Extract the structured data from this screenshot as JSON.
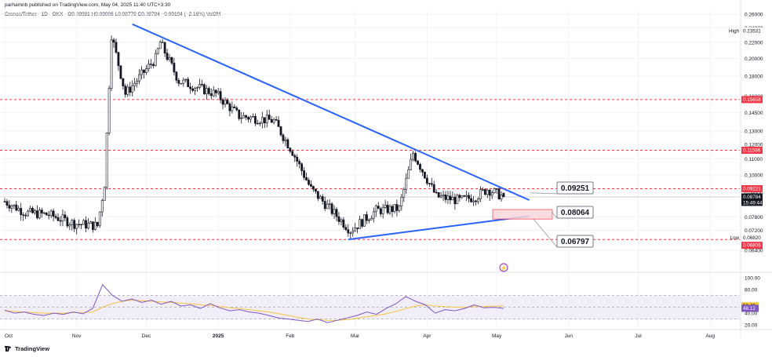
{
  "header": {
    "publisher": "parhamnb published on TradingView.com, May 04, 2025 11:40 UTC+3:30",
    "symbol": "Cronos/Tether · 1D · OKX",
    "ohlc": "O0.08981  H0.09006  L0.08778  C0.08784  −0.00194 (−2.16%)  Vol2M"
  },
  "footer": {
    "brand": "TradingView"
  },
  "colors": {
    "up": "#131722",
    "down": "#131722",
    "trendline": "#2962ff",
    "level_line": "#f23645",
    "rsi_line": "#7e57c2",
    "rsi_ma": "#f5c342",
    "rsi_band": "#ede7f6",
    "last_price": "#131722",
    "low_marker": "#f23645"
  },
  "chart_data": [
    {
      "type": "candlestick",
      "x_axis": {
        "labels": [
          "Oct",
          "Nov",
          "Dec",
          "2025",
          "Feb",
          "Mar",
          "Apr",
          "May",
          "Jun",
          "Jul",
          "Aug"
        ]
      },
      "y_axis": {
        "ticks": [
          "0.26000",
          "0.24000",
          "0.22000",
          "0.20000",
          "0.18000",
          "0.16000",
          "0.14500",
          "0.13000",
          "0.12000",
          "0.11000",
          "0.10000",
          "0.09000",
          "0.07800",
          "0.07200",
          "0.06400"
        ],
        "ylim": [
          0.058,
          0.265
        ],
        "scale": "log"
      },
      "ohlc_last": {
        "open": 0.08981,
        "high": 0.09006,
        "low": 0.08778,
        "close": 0.08784,
        "change": -0.00194,
        "change_pct": -2.16
      },
      "price_labels": [
        {
          "text": "High",
          "value": "0.23531"
        },
        {
          "text": "",
          "value": "0.15658"
        },
        {
          "text": "",
          "value": "0.11586"
        },
        {
          "text": "",
          "value": "0.09221"
        },
        {
          "text": "",
          "value": "0.08784",
          "countdown": "15:49:44"
        },
        {
          "text": "Low",
          "value": "0.06820"
        },
        {
          "text": "",
          "value": "0.06806"
        }
      ],
      "horizontal_levels": [
        0.15658,
        0.11586,
        0.09221,
        0.0682
      ],
      "annotations": [
        "0.09251",
        "0.08064",
        "0.06797"
      ],
      "trendlines": [
        {
          "name": "descending resistance",
          "from": [
            "Nov 25",
            0.245
          ],
          "to": [
            "May 15",
            0.0862
          ]
        },
        {
          "name": "ascending support",
          "from": [
            "Feb 26",
            0.0682
          ],
          "to": [
            "May 15",
            0.0784
          ]
        }
      ],
      "candles_approx": [
        {
          "date": "Oct 1",
          "close": 0.0855
        },
        {
          "date": "Oct 10",
          "close": 0.08
        },
        {
          "date": "Oct 20",
          "close": 0.079
        },
        {
          "date": "Oct 31",
          "close": 0.075
        },
        {
          "date": "Nov 10",
          "close": 0.074
        },
        {
          "date": "Nov 13",
          "close": 0.095
        },
        {
          "date": "Nov 16",
          "close": 0.23
        },
        {
          "date": "Nov 22",
          "close": 0.162
        },
        {
          "date": "Dec 5",
          "close": 0.2
        },
        {
          "date": "Dec 7",
          "close": 0.22
        },
        {
          "date": "Dec 15",
          "close": 0.175
        },
        {
          "date": "Dec 31",
          "close": 0.162
        },
        {
          "date": "Jan 10",
          "close": 0.142
        },
        {
          "date": "Jan 25",
          "close": 0.138
        },
        {
          "date": "Feb 2",
          "close": 0.115
        },
        {
          "date": "Feb 10",
          "close": 0.092
        },
        {
          "date": "Feb 27",
          "close": 0.072
        },
        {
          "date": "Mar 10",
          "close": 0.081
        },
        {
          "date": "Mar 20",
          "close": 0.082
        },
        {
          "date": "Mar 26",
          "close": 0.114
        },
        {
          "date": "Apr 5",
          "close": 0.088
        },
        {
          "date": "Apr 15",
          "close": 0.086
        },
        {
          "date": "Apr 22",
          "close": 0.088
        },
        {
          "date": "Apr 27",
          "close": 0.092
        },
        {
          "date": "May 4",
          "close": 0.08784
        }
      ]
    },
    {
      "type": "line",
      "name": "RSI",
      "y_axis": {
        "ticks": [
          "100.00",
          "80.00",
          "40.00",
          "20.00"
        ],
        "ylim": [
          15,
          105
        ]
      },
      "bands": [
        70,
        50,
        30
      ],
      "current": {
        "rsi": "48.12",
        "ma": "52.48"
      },
      "series": [
        {
          "name": "",
          "values": [
            45,
            40,
            42,
            38,
            36,
            40,
            38,
            42,
            39,
            48,
            88,
            70,
            60,
            64,
            58,
            62,
            55,
            60,
            52,
            54,
            48,
            56,
            49,
            44,
            46,
            42,
            40,
            36,
            32,
            30,
            28,
            26,
            30,
            24,
            28,
            32,
            36,
            42,
            38,
            48,
            56,
            68,
            60,
            54,
            40,
            46,
            44,
            48,
            54,
            49,
            50,
            48
          ]
        },
        {
          "name": "",
          "values": [
            44,
            43,
            42,
            41,
            40,
            40,
            40,
            41,
            41,
            42,
            50,
            56,
            60,
            62,
            61,
            60,
            59,
            58,
            57,
            56,
            54,
            53,
            51,
            49,
            48,
            46,
            44,
            42,
            39,
            36,
            33,
            30,
            29,
            28,
            28,
            29,
            31,
            34,
            36,
            39,
            43,
            48,
            52,
            54,
            52,
            51,
            50,
            50,
            51,
            51,
            52,
            52
          ]
        }
      ]
    }
  ]
}
